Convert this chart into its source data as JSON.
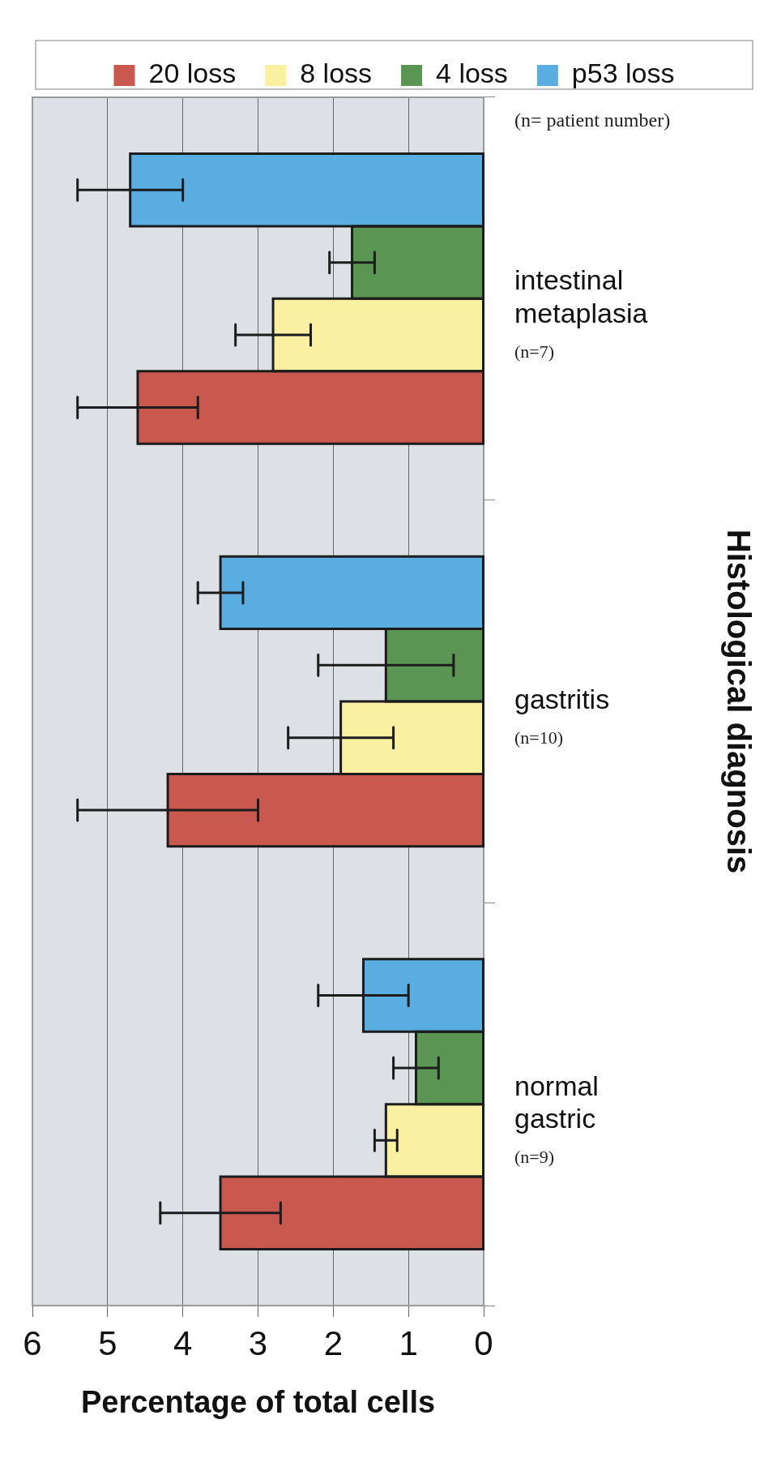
{
  "chart_data": {
    "type": "bar",
    "orientation": "horizontal",
    "xlabel": "Percentage of total cells",
    "ylabel": "Histological diagnosis",
    "categories": [
      "intestinal metaplasia",
      "gastritis",
      "normal gastric"
    ],
    "series": [
      {
        "name": "p53 loss",
        "color": "#5aade0",
        "values": [
          4.7,
          3.5,
          1.6
        ],
        "errors": [
          0.7,
          0.3,
          0.6
        ]
      },
      {
        "name": "4 loss",
        "color": "#5b9553",
        "values": [
          1.75,
          1.3,
          0.9
        ],
        "errors": [
          0.3,
          0.9,
          0.3
        ]
      },
      {
        "name": "8 loss",
        "color": "#faf0a2",
        "values": [
          2.8,
          1.9,
          1.3
        ],
        "errors": [
          0.5,
          0.7,
          0.15
        ]
      },
      {
        "name": "20 loss",
        "color": "#c9584f",
        "values": [
          4.6,
          4.2,
          3.5
        ],
        "errors": [
          0.8,
          1.2,
          0.8
        ]
      }
    ],
    "xlim": [
      6,
      0
    ],
    "xticks": [
      6,
      5,
      4,
      3,
      2,
      1,
      0
    ],
    "grid": "x",
    "legend": "top",
    "annotations": [
      "(n=7)",
      "(n=10)",
      "(n=9)",
      "(n= patient number)"
    ]
  }
}
